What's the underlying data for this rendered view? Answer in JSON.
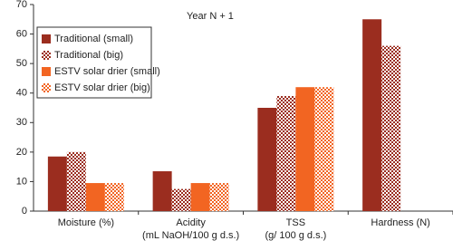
{
  "chart_data": {
    "type": "bar",
    "annotation": "Year N + 1",
    "categories": [
      [
        "Moisture (%)"
      ],
      [
        "Acidity",
        "(mL NaOH/100 g d.s.)"
      ],
      [
        "TSS",
        "(g/ 100 g d.s.)"
      ],
      [
        "Hardness (N)"
      ]
    ],
    "series": [
      {
        "name": "Traditional (small)",
        "color": "#9b2d1f",
        "hatched": false,
        "values": [
          18.5,
          13.5,
          35,
          65
        ]
      },
      {
        "name": "Traditional (big)",
        "color": "#9b2d1f",
        "hatched": true,
        "values": [
          20,
          7.5,
          39,
          56
        ]
      },
      {
        "name": "ESTV solar drier (small)",
        "color": "#f26522",
        "hatched": false,
        "values": [
          9.5,
          9.5,
          42,
          null
        ]
      },
      {
        "name": "ESTV solar drier (big)",
        "color": "#f26522",
        "hatched": true,
        "values": [
          9.5,
          9.5,
          42,
          null
        ]
      }
    ],
    "ylim": [
      0,
      70
    ],
    "yticks": [
      0,
      10,
      20,
      30,
      40,
      50,
      60,
      70
    ],
    "grid": false,
    "legend": "upper left"
  }
}
